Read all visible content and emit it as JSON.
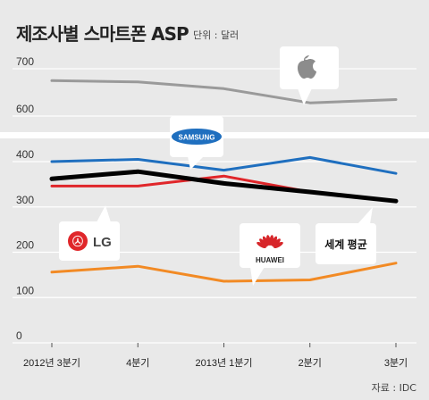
{
  "title": "제조사별 스마트폰 ASP",
  "unit": "단위 : 달러",
  "source": "자료 : IDC",
  "colors": {
    "apple": "#9a9a9a",
    "samsung": "#1f6fbf",
    "lg": "#e0262a",
    "huawei": "#f28a24",
    "world_average": "#000000"
  },
  "chart_data": {
    "type": "line",
    "categories": [
      "2012년 3분기",
      "4분기",
      "2013년 1분기",
      "2분기",
      "3분기"
    ],
    "y_ticks": [
      0,
      100,
      200,
      300,
      400,
      600,
      700
    ],
    "y_axis_break": true,
    "grid": true,
    "series": [
      {
        "name": "Apple",
        "key": "apple",
        "values": [
          675,
          672,
          658,
          628,
          635
        ]
      },
      {
        "name": "SAMSUNG",
        "key": "samsung",
        "values": [
          400,
          405,
          381,
          409,
          374
        ]
      },
      {
        "name": "LG",
        "key": "lg",
        "values": [
          346,
          346,
          368,
          333,
          314
        ]
      },
      {
        "name": "HUAWEI",
        "key": "huawei",
        "values": [
          156,
          169,
          136,
          139,
          176
        ]
      },
      {
        "name": "세계 평균",
        "key": "world_average",
        "values": [
          362,
          378,
          352,
          333,
          313
        ]
      }
    ],
    "callouts": {
      "apple_icon": "apple-logo",
      "samsung_label": "SAMSUNG",
      "lg_label": "LG",
      "huawei_label": "HUAWEI",
      "world_average_label": "세계 평균"
    }
  }
}
